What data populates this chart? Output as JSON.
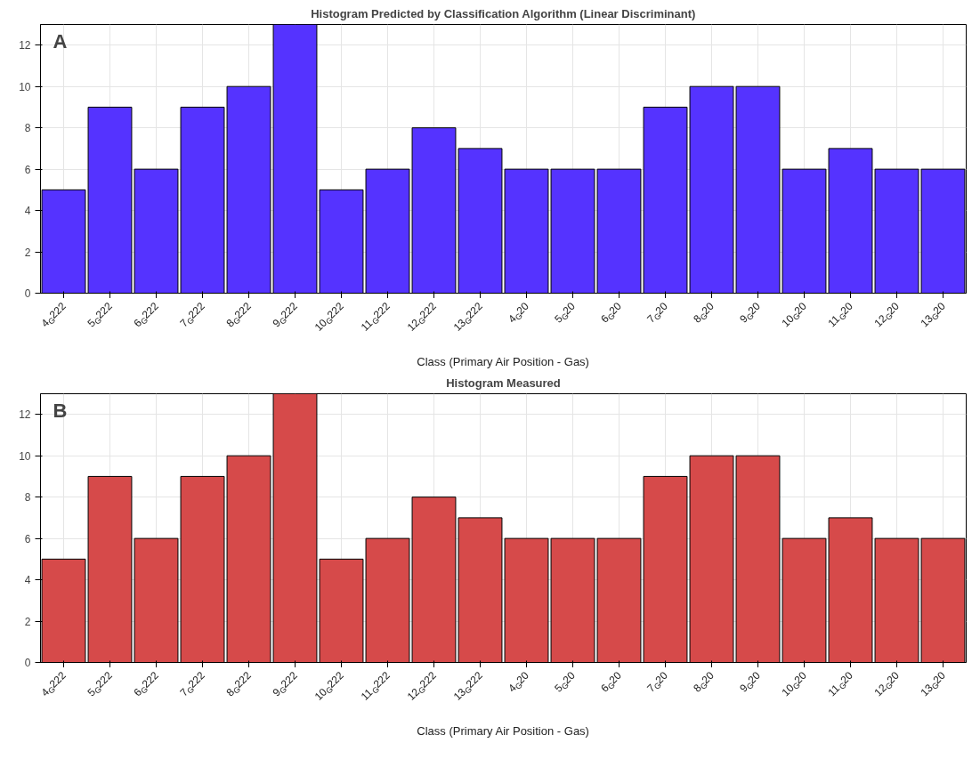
{
  "chart_data": [
    {
      "type": "bar",
      "title": "Histogram Predicted by Classification Algorithm (Linear Discriminant)",
      "xlabel": "Class (Primary Air Position - Gas)",
      "annotations": [
        "A"
      ],
      "categories": [
        "4$_{G}$222",
        "5$_{G}$222",
        "6$_{G}$222",
        "7$_{G}$222",
        "8$_{G}$222",
        "9$_{G}$222",
        "10$_{G}$222",
        "11$_{G}$222",
        "12$_{G}$222",
        "13$_{G}$222",
        "4$_{G}$20",
        "5$_{G}$20",
        "6$_{G}$20",
        "7$_{G}$20",
        "8$_{G}$20",
        "9$_{G}$20",
        "10$_{G}$20",
        "11$_{G}$20",
        "12$_{G}$20",
        "13$_{G}$20"
      ],
      "values": [
        5,
        9,
        6,
        9,
        10,
        13,
        5,
        6,
        8,
        7,
        6,
        6,
        6,
        9,
        10,
        10,
        6,
        7,
        6,
        6
      ],
      "color": "#5533ff",
      "ylim": [
        0,
        13
      ],
      "yticks": [
        0,
        2,
        4,
        6,
        8,
        10,
        12
      ],
      "grid": true
    },
    {
      "type": "bar",
      "title": "Histogram Measured",
      "xlabel": "Class (Primary Air Position - Gas)",
      "annotations": [
        "B"
      ],
      "categories": [
        "4$_{G}$222",
        "5$_{G}$222",
        "6$_{G}$222",
        "7$_{G}$222",
        "8$_{G}$222",
        "9$_{G}$222",
        "10$_{G}$222",
        "11$_{G}$222",
        "12$_{G}$222",
        "13$_{G}$222",
        "4$_{G}$20",
        "5$_{G}$20",
        "6$_{G}$20",
        "7$_{G}$20",
        "8$_{G}$20",
        "9$_{G}$20",
        "10$_{G}$20",
        "11$_{G}$20",
        "12$_{G}$20",
        "13$_{G}$20"
      ],
      "values": [
        5,
        9,
        6,
        9,
        10,
        13,
        5,
        6,
        8,
        7,
        6,
        6,
        6,
        9,
        10,
        10,
        6,
        7,
        6,
        6
      ],
      "color": "#d64a4a",
      "ylim": [
        0,
        13
      ],
      "yticks": [
        0,
        2,
        4,
        6,
        8,
        10,
        12
      ],
      "grid": true
    }
  ]
}
